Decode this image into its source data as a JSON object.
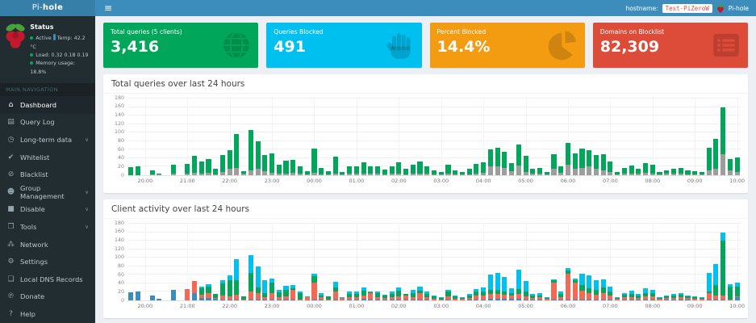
{
  "header": {
    "logo_pi": "Pi-",
    "logo_hole": "hole",
    "menu_icon": "≡",
    "hostname_label": "hostname:",
    "hostname_value": "Test-PiZeroW",
    "user_label": "Pi-hole"
  },
  "colors": {
    "navbar": "#3c8dbc",
    "logo_bg": "#367fa9",
    "sidebar": "#222d32",
    "card_green": "#00a65a",
    "card_blue": "#00c0ef",
    "card_orange": "#f39c12",
    "card_red": "#dd4b39",
    "chart_blocked_gray": "#9d9d9d",
    "chart_permitted_green": "#00a65a"
  },
  "sidebar": {
    "status": {
      "title": "Status",
      "active_label": "Active",
      "temp": "Temp: 42.2 °C",
      "load": "Load: 0.32 0.18 0.19",
      "memory": "Memory usage: 18.8%"
    },
    "section_label": "MAIN NAVIGATION",
    "items": [
      {
        "id": "dashboard",
        "label": "Dashboard",
        "icon": "home-icon",
        "chevron": false,
        "active": true
      },
      {
        "id": "query-log",
        "label": "Query Log",
        "icon": "file-icon",
        "chevron": false,
        "active": false
      },
      {
        "id": "long-term-data",
        "label": "Long-term data",
        "icon": "clock-icon",
        "chevron": true,
        "active": false
      },
      {
        "id": "whitelist",
        "label": "Whitelist",
        "icon": "check-icon",
        "chevron": false,
        "active": false
      },
      {
        "id": "blacklist",
        "label": "Blacklist",
        "icon": "ban-icon",
        "chevron": false,
        "active": false
      },
      {
        "id": "group-management",
        "label": "Group Management",
        "icon": "users-icon",
        "chevron": true,
        "active": false
      },
      {
        "id": "disable",
        "label": "Disable",
        "icon": "stop-icon",
        "chevron": true,
        "active": false
      },
      {
        "id": "tools",
        "label": "Tools",
        "icon": "folder-icon",
        "chevron": true,
        "active": false
      },
      {
        "id": "network",
        "label": "Network",
        "icon": "network-icon",
        "chevron": false,
        "active": false
      },
      {
        "id": "settings",
        "label": "Settings",
        "icon": "gears-icon",
        "chevron": false,
        "active": false
      },
      {
        "id": "local-dns-records",
        "label": "Local DNS Records",
        "icon": "book-icon",
        "chevron": false,
        "active": false
      },
      {
        "id": "donate",
        "label": "Donate",
        "icon": "paypal-icon",
        "chevron": false,
        "active": false
      },
      {
        "id": "help",
        "label": "Help",
        "icon": "question-icon",
        "chevron": false,
        "active": false
      }
    ]
  },
  "cards": [
    {
      "label": "Total queries (5 clients)",
      "value": "3,416",
      "color": "#00a65a",
      "icon": "globe-icon"
    },
    {
      "label": "Queries Blocked",
      "value": "491",
      "color": "#00c0ef",
      "icon": "hand-icon"
    },
    {
      "label": "Percent Blocked",
      "value": "14.4%",
      "color": "#f39c12",
      "icon": "pie-chart-icon"
    },
    {
      "label": "Domains on Blocklist",
      "value": "82,309",
      "color": "#dd4b39",
      "icon": "list-icon"
    }
  ],
  "chart_data": [
    {
      "type": "bar",
      "stacked": true,
      "title": "Total queries over last 24 hours",
      "xlabel": "",
      "ylabel": "",
      "ylim": [
        0,
        180
      ],
      "yticks": [
        0,
        20,
        40,
        60,
        80,
        100,
        120,
        140,
        160,
        180
      ],
      "interval_minutes": 10,
      "x_start": "19:40",
      "tick_labels": [
        "20:00",
        "21:00",
        "22:00",
        "23:00",
        "00:00",
        "01:00",
        "02:00",
        "03:00",
        "04:00",
        "05:00",
        "06:00",
        "07:00",
        "08:00",
        "09:00",
        "10:00"
      ],
      "tick_indices": [
        2,
        8,
        14,
        20,
        26,
        32,
        38,
        44,
        50,
        56,
        62,
        68,
        74,
        80,
        86
      ],
      "grid": true,
      "legend": "none",
      "series": [
        {
          "name": "blocked",
          "color": "#9d9d9d",
          "values": [
            0,
            0,
            0,
            2,
            1,
            0,
            3,
            0,
            3,
            5,
            4,
            5,
            2,
            8,
            15,
            18,
            3,
            12,
            15,
            10,
            5,
            3,
            4,
            5,
            3,
            2,
            5,
            2,
            2,
            4,
            2,
            3,
            3,
            4,
            3,
            3,
            2,
            3,
            4,
            2,
            3,
            4,
            3,
            2,
            2,
            3,
            2,
            2,
            2,
            4,
            5,
            20,
            20,
            18,
            10,
            22,
            8,
            3,
            3,
            2,
            15,
            5,
            25,
            15,
            18,
            20,
            15,
            12,
            8,
            2,
            3,
            4,
            3,
            5,
            4,
            2,
            3,
            3,
            4,
            2,
            2,
            2,
            12,
            15,
            50,
            12,
            8
          ]
        },
        {
          "name": "permitted",
          "color": "#00a65a",
          "values": [
            19,
            21,
            0,
            9,
            3,
            0,
            22,
            0,
            24,
            40,
            29,
            33,
            14,
            39,
            43,
            79,
            7,
            95,
            65,
            38,
            47,
            21,
            30,
            32,
            17,
            8,
            57,
            16,
            7,
            39,
            6,
            17,
            18,
            27,
            18,
            18,
            12,
            17,
            26,
            13,
            21,
            28,
            17,
            9,
            6,
            22,
            10,
            6,
            13,
            23,
            25,
            40,
            45,
            37,
            18,
            50,
            37,
            12,
            14,
            6,
            35,
            15,
            50,
            37,
            44,
            38,
            33,
            38,
            24,
            6,
            15,
            18,
            12,
            23,
            21,
            6,
            9,
            12,
            14,
            10,
            8,
            6,
            53,
            70,
            110,
            26,
            34
          ]
        }
      ]
    },
    {
      "type": "bar",
      "stacked": true,
      "title": "Client activity over last 24 hours",
      "xlabel": "",
      "ylabel": "",
      "ylim": [
        0,
        180
      ],
      "yticks": [
        0,
        20,
        40,
        60,
        80,
        100,
        120,
        140,
        160,
        180
      ],
      "interval_minutes": 10,
      "x_start": "19:40",
      "tick_labels": [
        "20:00",
        "21:00",
        "22:00",
        "23:00",
        "00:00",
        "01:00",
        "02:00",
        "03:00",
        "04:00",
        "05:00",
        "06:00",
        "07:00",
        "08:00",
        "09:00",
        "10:00"
      ],
      "tick_indices": [
        2,
        8,
        14,
        20,
        26,
        32,
        38,
        44,
        50,
        56,
        62,
        68,
        74,
        80,
        86
      ],
      "grid": true,
      "legend": "none",
      "series": [
        {
          "name": "client-blue",
          "color": "#3c8dbc",
          "values": [
            19,
            21,
            0,
            11,
            4,
            0,
            25,
            0,
            0,
            18,
            5,
            5,
            3,
            2,
            2,
            2,
            0,
            2,
            2,
            2,
            2,
            2,
            2,
            2,
            0,
            0,
            2,
            2,
            0,
            2,
            0,
            2,
            2,
            3,
            2,
            2,
            2,
            2,
            2,
            2,
            2,
            2,
            2,
            0,
            0,
            2,
            0,
            0,
            2,
            2,
            2,
            3,
            3,
            3,
            3,
            3,
            2,
            2,
            2,
            0,
            2,
            2,
            2,
            2,
            2,
            2,
            2,
            2,
            2,
            0,
            2,
            2,
            2,
            2,
            2,
            0,
            2,
            2,
            2,
            2,
            0,
            0,
            2,
            2,
            2,
            0,
            8
          ]
        },
        {
          "name": "client-red",
          "color": "#f56954",
          "values": [
            0,
            0,
            0,
            0,
            0,
            0,
            0,
            0,
            27,
            27,
            8,
            12,
            3,
            10,
            8,
            12,
            2,
            18,
            15,
            5,
            15,
            5,
            8,
            22,
            2,
            8,
            40,
            5,
            2,
            18,
            6,
            6,
            6,
            8,
            15,
            6,
            4,
            6,
            8,
            10,
            6,
            15,
            5,
            4,
            2,
            8,
            4,
            3,
            4,
            10,
            10,
            12,
            12,
            10,
            8,
            12,
            8,
            4,
            5,
            3,
            40,
            5,
            60,
            40,
            20,
            15,
            12,
            15,
            10,
            3,
            5,
            6,
            4,
            8,
            8,
            3,
            3,
            4,
            5,
            3,
            3,
            3,
            15,
            10,
            10,
            2,
            2
          ]
        },
        {
          "name": "client-green",
          "color": "#00a65a",
          "values": [
            0,
            0,
            0,
            0,
            0,
            0,
            0,
            0,
            0,
            0,
            15,
            15,
            10,
            28,
            38,
            33,
            8,
            45,
            13,
            11,
            25,
            12,
            14,
            5,
            16,
            0,
            15,
            5,
            7,
            10,
            0,
            8,
            8,
            12,
            2,
            9,
            6,
            8,
            12,
            3,
            10,
            6,
            9,
            5,
            4,
            10,
            6,
            3,
            6,
            8,
            8,
            10,
            10,
            8,
            7,
            12,
            10,
            5,
            4,
            3,
            5,
            8,
            8,
            5,
            15,
            12,
            10,
            13,
            8,
            3,
            6,
            8,
            5,
            8,
            7,
            3,
            4,
            5,
            6,
            4,
            4,
            3,
            3,
            25,
            128,
            31,
            22
          ]
        },
        {
          "name": "client-cyan",
          "color": "#00c0ef",
          "values": [
            0,
            0,
            0,
            0,
            0,
            0,
            0,
            0,
            0,
            0,
            5,
            6,
            0,
            7,
            10,
            50,
            0,
            42,
            50,
            30,
            10,
            5,
            10,
            8,
            2,
            2,
            5,
            6,
            0,
            13,
            2,
            4,
            5,
            8,
            2,
            4,
            2,
            4,
            8,
            0,
            6,
            9,
            4,
            2,
            2,
            5,
            2,
            2,
            3,
            7,
            10,
            35,
            40,
            34,
            10,
            45,
            25,
            4,
            6,
            2,
            3,
            5,
            5,
            5,
            25,
            29,
            24,
            20,
            12,
            2,
            5,
            6,
            4,
            10,
            8,
            2,
            3,
            4,
            5,
            3,
            3,
            2,
            45,
            48,
            20,
            5,
            10
          ]
        }
      ]
    }
  ]
}
